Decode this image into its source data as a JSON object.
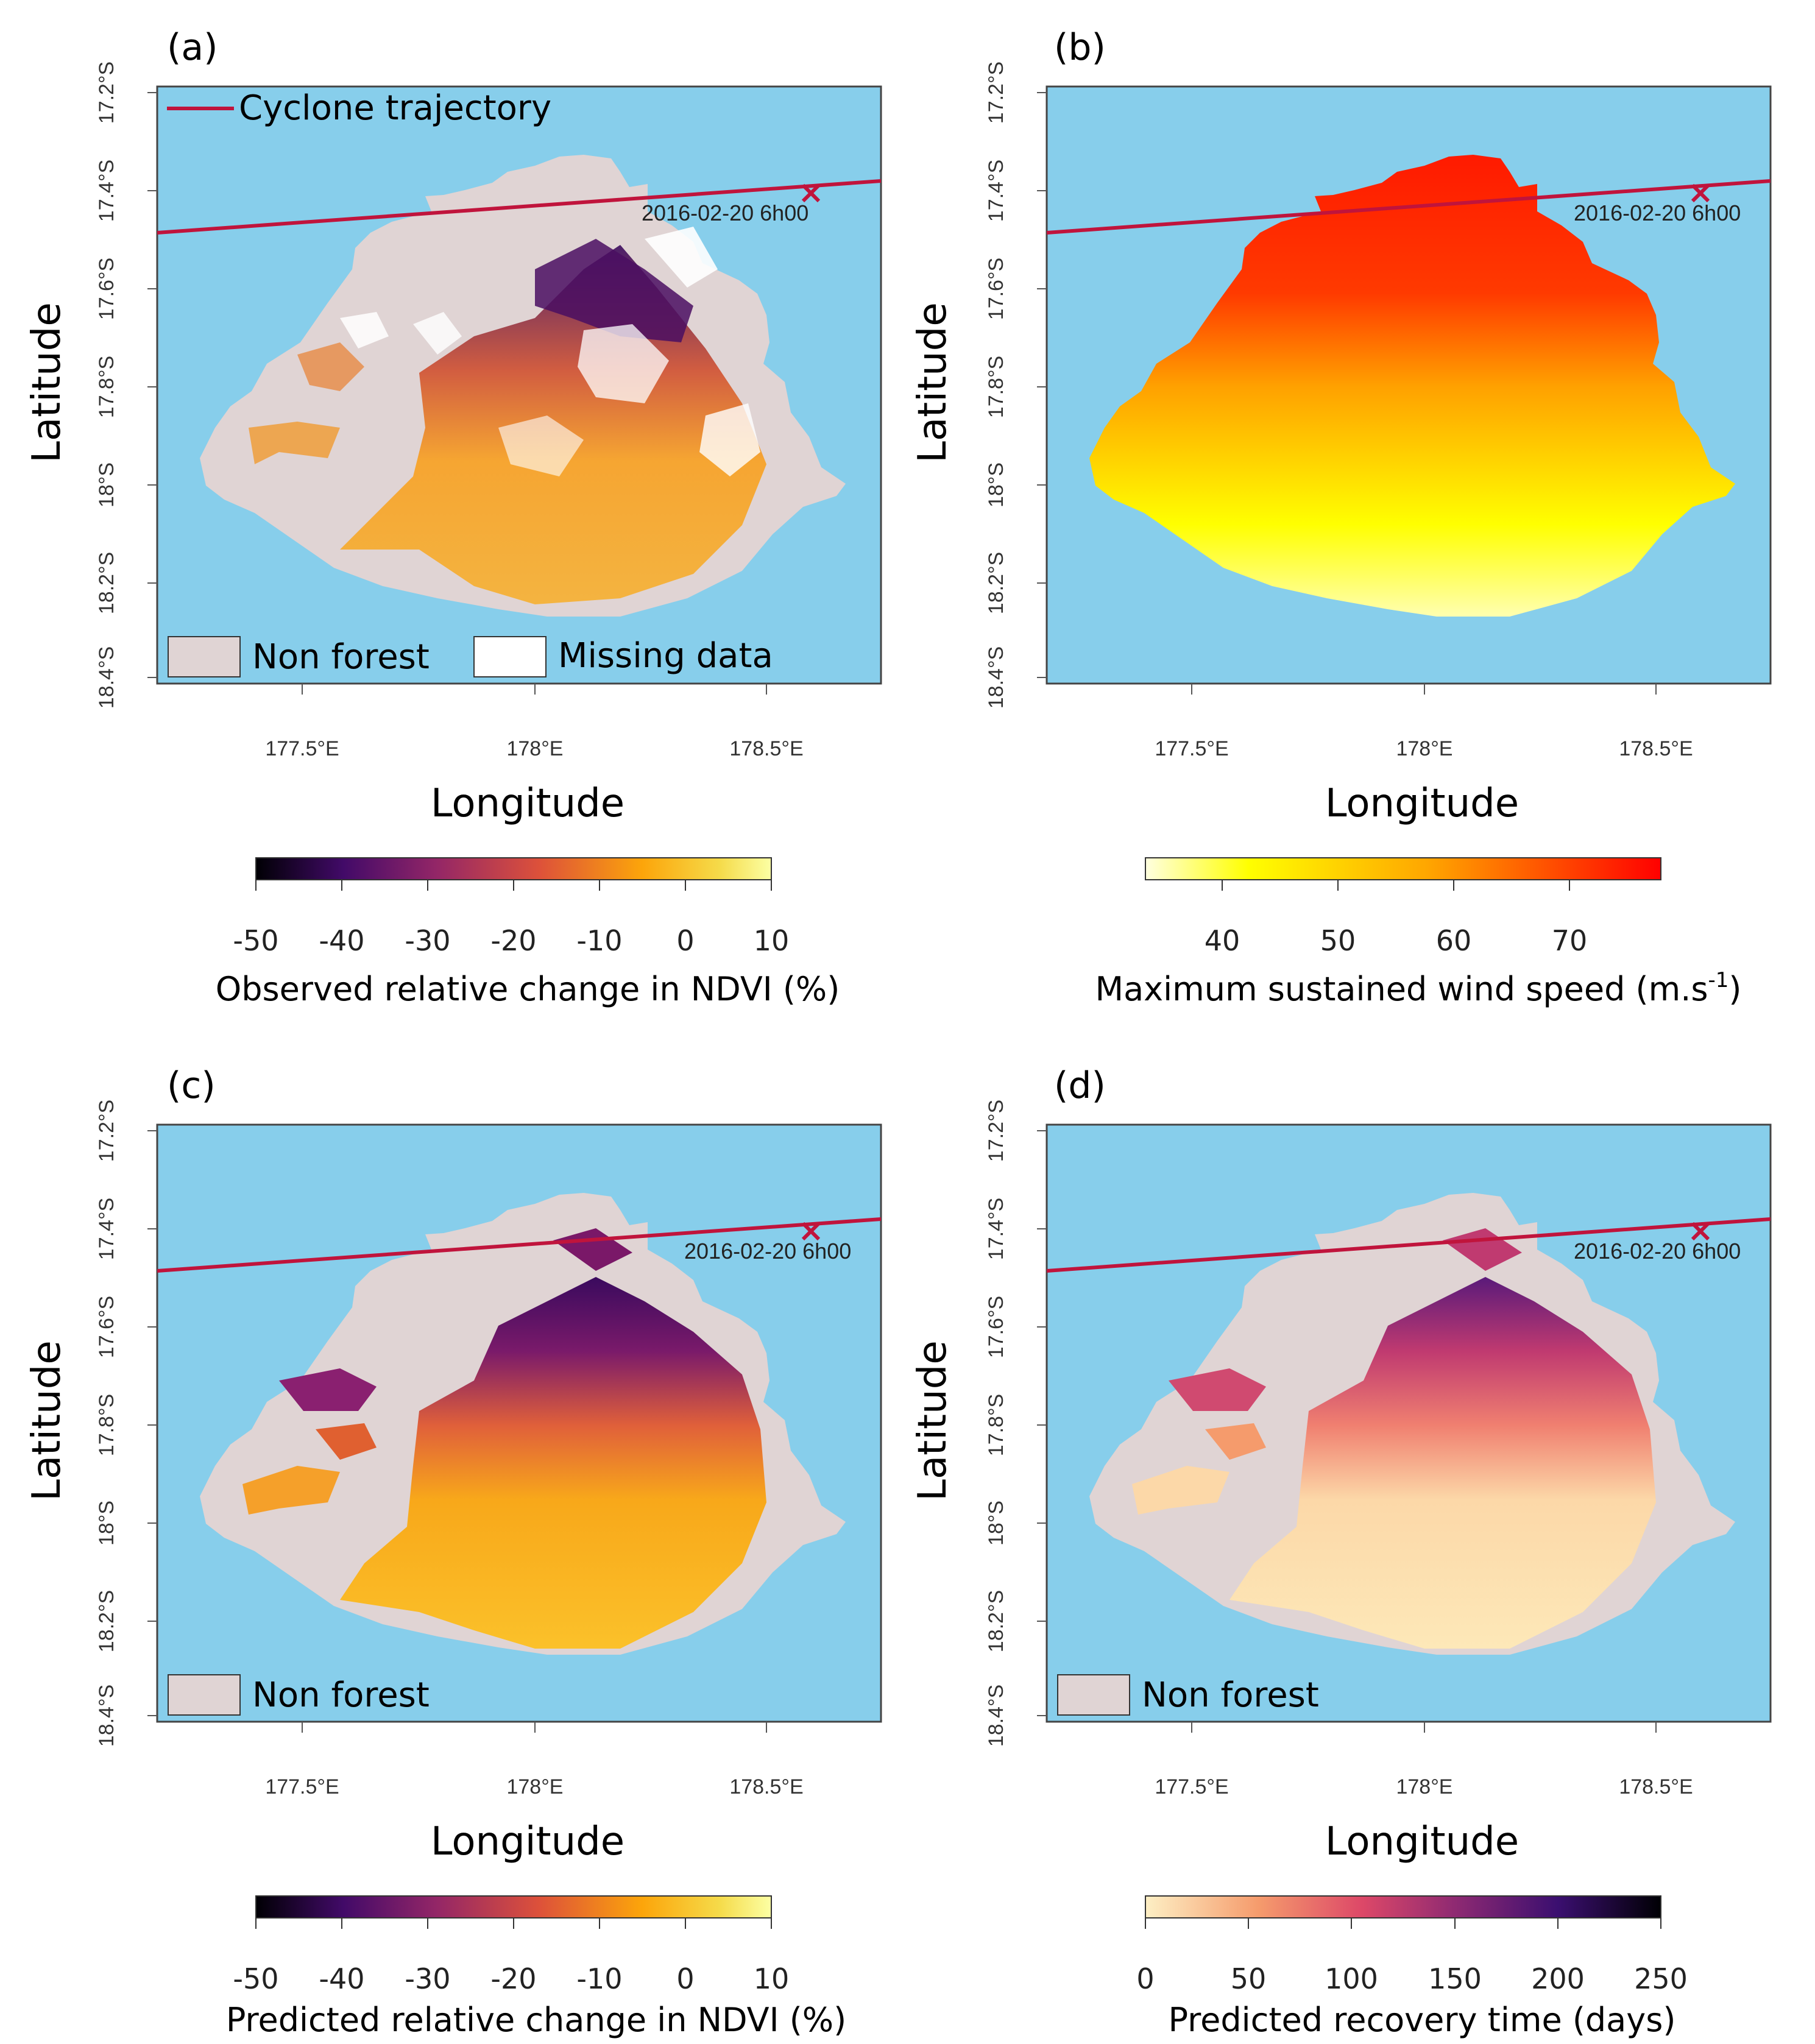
{
  "colors": {
    "sea": "#87CEEB",
    "nonforest": "#E0D4D4",
    "trajectory": "#C0143C",
    "inferno": [
      "#000004",
      "#420a68",
      "#932667",
      "#dd513a",
      "#fca50a",
      "#f5db4a",
      "#fcffa4"
    ],
    "wind": [
      "#ffffe0",
      "#ffff00",
      "#ffa500",
      "#ff0000"
    ],
    "recovery": [
      "#fdefc4",
      "#f59b6c",
      "#dd4868",
      "#8f2a72",
      "#3b0f70",
      "#000004"
    ]
  },
  "panels": [
    {
      "label": "(a)",
      "xlabel": "Longitude",
      "ylabel": "Latitude",
      "xticks": [
        "177.5°E",
        "178°E",
        "178.5°E"
      ],
      "yticks": [
        "17.2°S",
        "17.4°S",
        "17.6°S",
        "17.8°S",
        "18°S",
        "18.2°S",
        "18.4°S"
      ],
      "annotation": "2016-02-20 6h00",
      "legend_line": "Cyclone trajectory",
      "legend_boxes": [
        "Non forest",
        "Missing data"
      ],
      "colorbar": {
        "ticks": [
          "-50",
          "-40",
          "-30",
          "-20",
          "-10",
          "0",
          "10"
        ],
        "title": "Observed relative change in NDVI (%)"
      }
    },
    {
      "label": "(b)",
      "xlabel": "Longitude",
      "ylabel": "Latitude",
      "xticks": [
        "177.5°E",
        "178°E",
        "178.5°E"
      ],
      "yticks": [
        "17.2°S",
        "17.4°S",
        "17.6°S",
        "17.8°S",
        "18°S",
        "18.2°S",
        "18.4°S"
      ],
      "annotation": "2016-02-20 6h00",
      "colorbar": {
        "ticks": [
          "40",
          "50",
          "60",
          "70"
        ],
        "title": "Maximum sustained wind speed (m.s",
        "title_sup": "-1",
        "title_end": ")"
      }
    },
    {
      "label": "(c)",
      "xlabel": "Longitude",
      "ylabel": "Latitude",
      "xticks": [
        "177.5°E",
        "178°E",
        "178.5°E"
      ],
      "yticks": [
        "17.2°S",
        "17.4°S",
        "17.6°S",
        "17.8°S",
        "18°S",
        "18.2°S",
        "18.4°S"
      ],
      "annotation": "2016-02-20 6h00",
      "legend_boxes": [
        "Non forest"
      ],
      "colorbar": {
        "ticks": [
          "-50",
          "-40",
          "-30",
          "-20",
          "-10",
          "0",
          "10"
        ],
        "title": "Predicted relative change in NDVI (%)"
      }
    },
    {
      "label": "(d)",
      "xlabel": "Longitude",
      "ylabel": "Latitude",
      "xticks": [
        "177.5°E",
        "178°E",
        "178.5°E"
      ],
      "yticks": [
        "17.2°S",
        "17.4°S",
        "17.6°S",
        "17.8°S",
        "18°S",
        "18.2°S",
        "18.4°S"
      ],
      "annotation": "2016-02-20 6h00",
      "legend_boxes": [
        "Non forest"
      ],
      "colorbar": {
        "ticks": [
          "0",
          "50",
          "100",
          "150",
          "200",
          "250"
        ],
        "title": "Predicted recovery time (days)"
      }
    }
  ]
}
